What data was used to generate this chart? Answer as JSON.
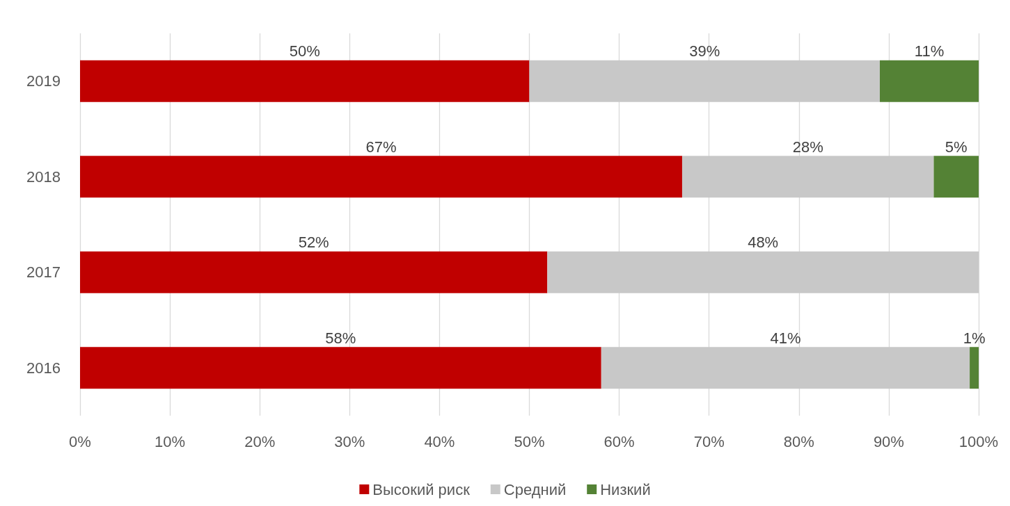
{
  "chart_data": {
    "type": "bar",
    "orientation": "horizontal",
    "stacked": true,
    "categories": [
      "2019",
      "2018",
      "2017",
      "2016"
    ],
    "series": [
      {
        "name": "Высокий риск",
        "color": "#c00000",
        "values": [
          50,
          67,
          52,
          58
        ],
        "value_labels": [
          "50%",
          "67%",
          "52%",
          "58%"
        ]
      },
      {
        "name": "Средний",
        "color": "#c8c8c8",
        "values": [
          39,
          28,
          48,
          41
        ],
        "value_labels": [
          "39%",
          "28%",
          "48%",
          "41%"
        ]
      },
      {
        "name": "Низкий",
        "color": "#548235",
        "values": [
          11,
          5,
          null,
          1
        ],
        "value_labels": [
          "11%",
          "5%",
          null,
          "1%"
        ]
      }
    ],
    "xlim": [
      0,
      100
    ],
    "xticks": [
      {
        "value": 0,
        "label": "0%"
      },
      {
        "value": 10,
        "label": "10%"
      },
      {
        "value": 20,
        "label": "20%"
      },
      {
        "value": 30,
        "label": "30%"
      },
      {
        "value": 40,
        "label": "40%"
      },
      {
        "value": 50,
        "label": "50%"
      },
      {
        "value": 60,
        "label": "60%"
      },
      {
        "value": 70,
        "label": "70%"
      },
      {
        "value": 80,
        "label": "80%"
      },
      {
        "value": 90,
        "label": "90%"
      },
      {
        "value": 100,
        "label": "100%"
      }
    ],
    "grid": "x",
    "legend": "bottom"
  }
}
